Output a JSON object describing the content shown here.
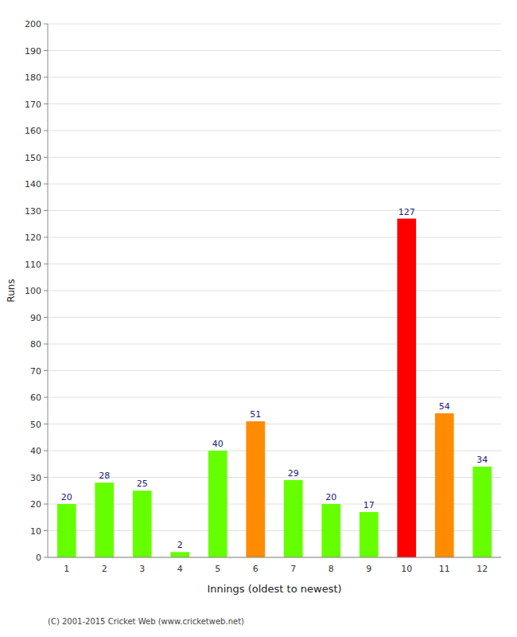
{
  "chart_data": {
    "type": "bar",
    "categories": [
      "1",
      "2",
      "3",
      "4",
      "5",
      "6",
      "7",
      "8",
      "9",
      "10",
      "11",
      "12"
    ],
    "values": [
      20,
      28,
      25,
      2,
      40,
      51,
      29,
      20,
      17,
      127,
      54,
      34
    ],
    "colors": [
      "#66ff00",
      "#66ff00",
      "#66ff00",
      "#66ff00",
      "#66ff00",
      "#ff8c00",
      "#66ff00",
      "#66ff00",
      "#66ff00",
      "#ff0000",
      "#ff8c00",
      "#66ff00"
    ],
    "xlabel": "Innings (oldest to newest)",
    "ylabel": "Runs",
    "ylim": [
      0,
      200
    ],
    "yticks": [
      0,
      10,
      20,
      30,
      40,
      50,
      60,
      70,
      80,
      90,
      100,
      110,
      120,
      130,
      140,
      150,
      160,
      170,
      180,
      190,
      200
    ],
    "grid": true,
    "data_labels": true,
    "annotations": [
      "(C) 2001-2015 Cricket Web (www.cricketweb.net)"
    ]
  }
}
